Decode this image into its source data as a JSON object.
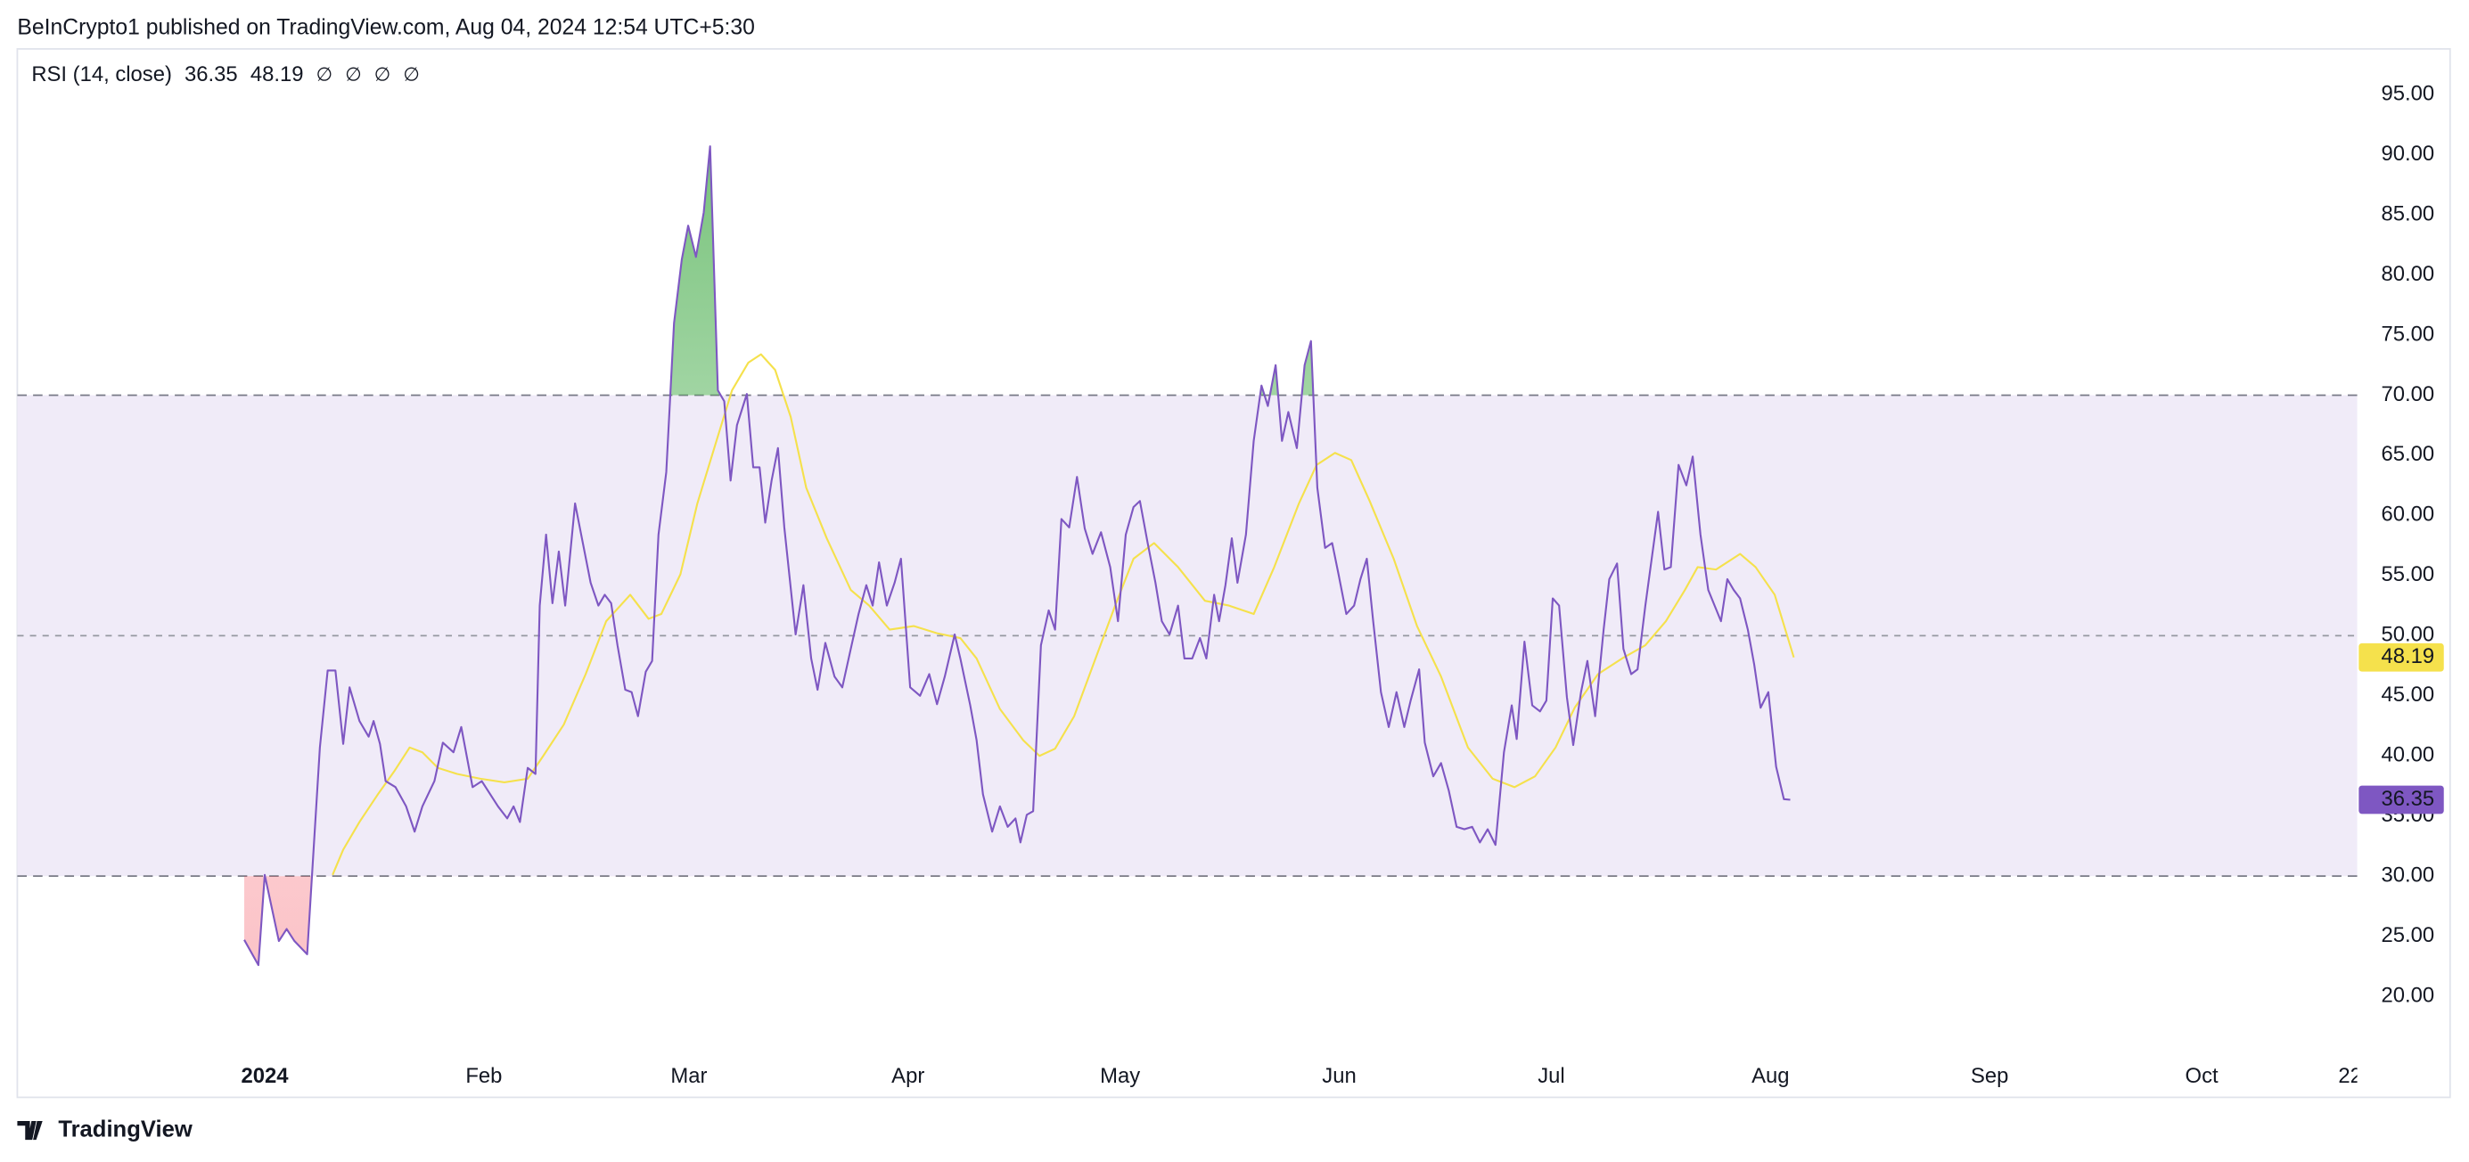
{
  "header": "BeInCrypto1 published on TradingView.com, Aug 04, 2024 12:54 UTC+5:30",
  "footer": {
    "brand": "TradingView"
  },
  "chart_data": {
    "type": "line",
    "legend_title": "RSI (14, close)",
    "legend_icons": [
      "∅",
      "∅",
      "∅",
      "∅"
    ],
    "xlim": [
      -35,
      296
    ],
    "xticks": [
      {
        "value": 0,
        "label": "2024"
      },
      {
        "value": 31,
        "label": "Feb"
      },
      {
        "value": 60,
        "label": "Mar"
      },
      {
        "value": 91,
        "label": "Apr"
      },
      {
        "value": 121,
        "label": "May"
      },
      {
        "value": 152,
        "label": "Jun"
      },
      {
        "value": 182,
        "label": "Jul"
      },
      {
        "value": 213,
        "label": "Aug"
      },
      {
        "value": 244,
        "label": "Sep"
      },
      {
        "value": 274,
        "label": "Oct"
      },
      {
        "value": 295,
        "label": "22"
      }
    ],
    "ylim": [
      11.6,
      98.8
    ],
    "yticks": [
      {
        "value": 20,
        "label": "20.00"
      },
      {
        "value": 25,
        "label": "25.00"
      },
      {
        "value": 30,
        "label": "30.00"
      },
      {
        "value": 35,
        "label": "35.00"
      },
      {
        "value": 40,
        "label": "40.00"
      },
      {
        "value": 45,
        "label": "45.00"
      },
      {
        "value": 50,
        "label": "50.00"
      },
      {
        "value": 55,
        "label": "55.00"
      },
      {
        "value": 60,
        "label": "60.00"
      },
      {
        "value": 65,
        "label": "65.00"
      },
      {
        "value": 70,
        "label": "70.00"
      },
      {
        "value": 75,
        "label": "75.00"
      },
      {
        "value": 80,
        "label": "80.00"
      },
      {
        "value": 85,
        "label": "85.00"
      },
      {
        "value": 90,
        "label": "90.00"
      },
      {
        "value": 95,
        "label": "95.00"
      }
    ],
    "overbought": 70,
    "middle": 50,
    "oversold": 30,
    "band_color": "#f0ebf8",
    "overbought_fill": "#4caf50",
    "oversold_fill": "#f23645",
    "series": [
      {
        "color": "#7e57c2",
        "label_text_color": "#ffffff",
        "x": [
          -2.9,
          -0.9,
          0,
          2,
          3.1,
          4.2,
          6,
          7.8,
          8.9,
          10,
          11.1,
          12,
          13.4,
          14.7,
          15.4,
          16.3,
          17.1,
          18.5,
          20,
          21.2,
          22.3,
          24,
          25.2,
          26.7,
          27.8,
          29.4,
          30.7,
          33,
          34.3,
          35.2,
          36.1,
          37.2,
          38.3,
          38.9,
          39.8,
          40.7,
          41.6,
          42.5,
          43.9,
          45,
          46.1,
          47.2,
          48.1,
          49,
          49.9,
          51,
          51.9,
          52.8,
          53.9,
          54.8,
          55.7,
          56.8,
          57.9,
          59,
          59.9,
          61,
          62.1,
          63,
          64.1,
          65,
          65.9,
          66.8,
          68.2,
          69.1,
          70,
          70.8,
          71.7,
          72.6,
          73.5,
          75.1,
          76.2,
          77.3,
          78.2,
          79.3,
          80.6,
          81.7,
          82.9,
          84,
          85.1,
          86,
          86.9,
          88,
          89.1,
          90,
          91.3,
          92.7,
          94,
          95.1,
          96.2,
          97.6,
          98.4,
          99.8,
          100.7,
          101.6,
          102.9,
          104,
          105.1,
          106.2,
          106.9,
          107.8,
          108.7,
          109.8,
          110.9,
          111.8,
          112.7,
          113.8,
          114.9,
          116,
          117.1,
          118.3,
          119.6,
          120.7,
          121.8,
          122.9,
          123.8,
          124.9,
          126,
          126.9,
          128,
          129.2,
          130.1,
          131.2,
          132.3,
          133.2,
          134.3,
          135,
          135.9,
          136.8,
          137.6,
          138.8,
          139.9,
          141,
          141.9,
          143,
          143.9,
          144.8,
          146,
          147.1,
          148,
          148.9,
          150,
          151,
          151.9,
          153,
          154.1,
          155,
          155.9,
          156.8,
          157.9,
          159,
          160.1,
          161.2,
          162.1,
          163.3,
          164.1,
          165.3,
          166.4,
          167.5,
          168.6,
          169.7,
          170.8,
          171.9,
          173,
          174.1,
          175.3,
          176.4,
          177.1,
          178.2,
          179.3,
          180.4,
          181.3,
          182.2,
          183.1,
          184.2,
          185.1,
          186.2,
          187.1,
          188.2,
          189.4,
          190.2,
          191.3,
          192.2,
          193.3,
          194.2,
          195.3,
          196.2,
          197.1,
          198,
          198.9,
          200,
          201.1,
          202,
          203.1,
          204.2,
          205.1,
          206,
          206.9,
          207.8,
          208.7,
          209.8,
          210.7,
          211.6,
          212.7,
          213.8,
          214.9,
          215.8
        ],
        "values": [
          24.7,
          22.6,
          30.1,
          24.6,
          25.6,
          24.6,
          23.5,
          40.7,
          47.1,
          47.1,
          41.0,
          45.7,
          42.9,
          41.6,
          42.9,
          41.0,
          37.9,
          37.4,
          35.8,
          33.7,
          35.8,
          37.9,
          41.1,
          40.3,
          42.4,
          37.4,
          37.9,
          35.8,
          34.8,
          35.8,
          34.5,
          39.0,
          38.5,
          52.5,
          58.4,
          52.7,
          57.0,
          52.5,
          61.0,
          57.7,
          54.4,
          52.5,
          53.4,
          52.7,
          49.2,
          45.5,
          45.3,
          43.3,
          47.0,
          47.9,
          58.4,
          63.6,
          76.0,
          81.3,
          84.1,
          81.5,
          85.2,
          90.7,
          70.4,
          69.5,
          62.9,
          67.5,
          70.1,
          64.0,
          64.0,
          59.4,
          62.9,
          65.6,
          59.0,
          50.1,
          54.2,
          48.1,
          45.5,
          49.4,
          46.6,
          45.7,
          48.9,
          51.8,
          54.2,
          52.5,
          56.1,
          52.5,
          54.4,
          56.4,
          45.7,
          45.0,
          46.8,
          44.3,
          46.6,
          50.1,
          48.1,
          44.2,
          41.3,
          36.8,
          33.7,
          35.8,
          34.1,
          34.8,
          32.8,
          35.1,
          35.4,
          49.2,
          52.1,
          50.5,
          59.7,
          59.0,
          63.2,
          58.9,
          56.8,
          58.6,
          55.7,
          51.2,
          58.4,
          60.7,
          61.2,
          57.7,
          54.4,
          51.2,
          50.1,
          52.5,
          48.1,
          48.1,
          49.8,
          48.1,
          53.4,
          51.2,
          54.2,
          58.1,
          54.4,
          58.4,
          66.2,
          70.8,
          69.1,
          72.5,
          66.2,
          68.6,
          65.6,
          72.5,
          74.5,
          62.3,
          57.3,
          57.7,
          55.1,
          51.8,
          52.5,
          54.7,
          56.4,
          51.2,
          45.3,
          42.4,
          45.3,
          42.4,
          44.6,
          47.2,
          41.1,
          38.3,
          39.4,
          37.1,
          34.1,
          33.9,
          34.1,
          32.8,
          33.9,
          32.6,
          40.3,
          44.2,
          41.4,
          49.5,
          44.2,
          43.7,
          44.6,
          53.1,
          52.5,
          44.9,
          40.9,
          45.3,
          47.9,
          43.3,
          50.5,
          54.7,
          56.0,
          48.9,
          46.8,
          47.2,
          52.5,
          56.4,
          60.3,
          55.5,
          55.7,
          64.2,
          62.5,
          64.9,
          58.4,
          53.8,
          52.5,
          51.2,
          54.7,
          53.8,
          53.1,
          50.5,
          47.6,
          44.0,
          45.3,
          39.1,
          36.4,
          36.35
        ]
      },
      {
        "color": "#f5e14c",
        "label_text_color": "#131722",
        "x": [
          9.6,
          11.1,
          13.4,
          16,
          18.3,
          20.5,
          22.3,
          24.5,
          27.2,
          30.5,
          33.9,
          37.2,
          39.4,
          42.3,
          45.4,
          48.3,
          51.7,
          54.3,
          56.1,
          58.8,
          61.2,
          63.9,
          66.1,
          68.4,
          70.2,
          72.2,
          74.4,
          76.6,
          79.5,
          82.9,
          85.5,
          88.4,
          91.8,
          95.1,
          98.4,
          100.7,
          104,
          107.3,
          109.6,
          111.8,
          114.5,
          117.4,
          120.3,
          122.9,
          125.8,
          129.2,
          133,
          136.4,
          139.9,
          142.8,
          146.3,
          148.8,
          151.4,
          153.7,
          156.3,
          159.7,
          163,
          166.4,
          170.2,
          173.7,
          176.8,
          179.7,
          182.6,
          185.3,
          188.6,
          192,
          195.3,
          198.2,
          200.9,
          202.7,
          205.3,
          208.7,
          210.9,
          213.6,
          216.3
        ],
        "values": [
          30.1,
          32.2,
          34.5,
          36.8,
          38.7,
          40.7,
          40.3,
          39.0,
          38.5,
          38.1,
          37.8,
          38.1,
          40.0,
          42.6,
          46.8,
          51.2,
          53.4,
          51.4,
          51.8,
          55.1,
          61.0,
          66.2,
          70.4,
          72.7,
          73.4,
          72.1,
          68.2,
          62.3,
          58.1,
          53.8,
          52.5,
          50.5,
          50.8,
          50.2,
          49.8,
          48.1,
          43.9,
          41.3,
          40.0,
          40.6,
          43.3,
          47.9,
          52.5,
          56.4,
          57.7,
          55.7,
          52.9,
          52.5,
          51.8,
          55.7,
          61.0,
          64.2,
          65.2,
          64.6,
          61.2,
          56.4,
          50.8,
          46.6,
          40.7,
          38.1,
          37.4,
          38.3,
          40.7,
          44.0,
          46.8,
          48.1,
          49.2,
          51.2,
          53.8,
          55.7,
          55.5,
          56.8,
          55.7,
          53.4,
          48.19
        ]
      }
    ]
  }
}
